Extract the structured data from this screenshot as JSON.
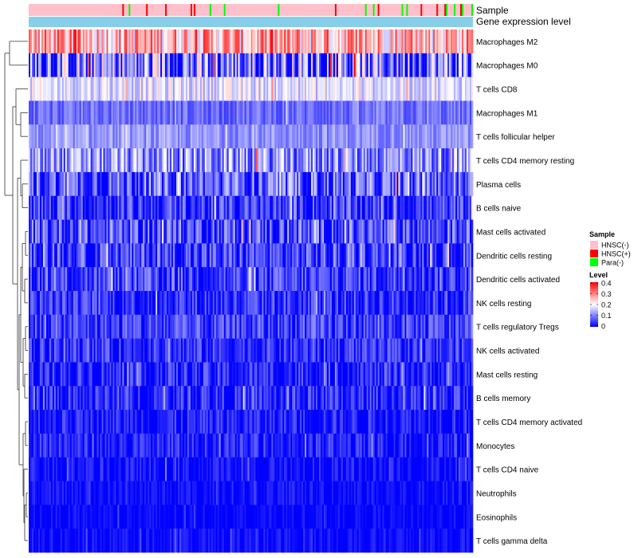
{
  "chart_data": {
    "type": "heatmap",
    "title": "",
    "annotation_labels": {
      "sample": "Sample",
      "expression": "Gene expression level"
    },
    "rows": [
      {
        "label": "Macrophages M2",
        "base": 0.25,
        "spread": 0.14
      },
      {
        "label": "Macrophages M0",
        "base": 0.08,
        "spread": 0.2
      },
      {
        "label": "T cells CD8",
        "base": 0.17,
        "spread": 0.07
      },
      {
        "label": "Macrophages M1",
        "base": 0.08,
        "spread": 0.05
      },
      {
        "label": "T cells follicular helper",
        "base": 0.11,
        "spread": 0.05
      },
      {
        "label": "T cells CD4 memory resting",
        "base": 0.1,
        "spread": 0.12
      },
      {
        "label": "Plasma cells",
        "base": 0.06,
        "spread": 0.12
      },
      {
        "label": "B cells naive",
        "base": 0.03,
        "spread": 0.1
      },
      {
        "label": "Mast cells activated",
        "base": 0.05,
        "spread": 0.11
      },
      {
        "label": "Dendritic cells resting",
        "base": 0.04,
        "spread": 0.1
      },
      {
        "label": "Dendritic cells activated",
        "base": 0.04,
        "spread": 0.09
      },
      {
        "label": "NK cells resting",
        "base": 0.03,
        "spread": 0.08
      },
      {
        "label": "T cells regulatory  Tregs",
        "base": 0.04,
        "spread": 0.08
      },
      {
        "label": "NK cells activated",
        "base": 0.03,
        "spread": 0.07
      },
      {
        "label": "Mast cells resting",
        "base": 0.02,
        "spread": 0.08
      },
      {
        "label": "B cells memory",
        "base": 0.02,
        "spread": 0.08
      },
      {
        "label": "T cells CD4 memory activated",
        "base": 0.02,
        "spread": 0.06
      },
      {
        "label": "Monocytes",
        "base": 0.02,
        "spread": 0.06
      },
      {
        "label": "T cells CD4 naive",
        "base": 0.005,
        "spread": 0.05
      },
      {
        "label": "Neutrophils",
        "base": 0.005,
        "spread": 0.04
      },
      {
        "label": "Eosinophils",
        "base": 0.002,
        "spread": 0.03
      },
      {
        "label": "T cells gamma delta",
        "base": 0.002,
        "spread": 0.04
      }
    ],
    "n_samples": 280,
    "sample_groups": {
      "HNSC(-)": 0.87,
      "HNSC(+)": 0.08,
      "Para(-)": 0.05
    },
    "color_scale": {
      "min": 0,
      "max": 0.4,
      "stops": [
        {
          "value": 0,
          "color": "#0000ff"
        },
        {
          "value": 0.2,
          "color": "#ffffff"
        },
        {
          "value": 0.4,
          "color": "#ff0000"
        }
      ]
    },
    "dendrogram": "hierarchical clustering of rows (left side)",
    "legend": {
      "sample_title": "Sample",
      "sample_entries": [
        {
          "label": "HNSC(-)",
          "color": "#ffc0cb"
        },
        {
          "label": "HNSC(+)",
          "color": "#ff0000"
        },
        {
          "label": "Para(-)",
          "color": "#00ff00"
        }
      ],
      "level_title": "Level",
      "level_ticks": [
        "0.4",
        "0.3",
        "0.2",
        "0.1",
        "0"
      ],
      "position": "right"
    },
    "expression_bar_color": "#87ceeb"
  }
}
